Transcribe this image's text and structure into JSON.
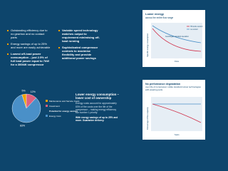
{
  "bullets_left": [
    "Outstanding efficiency due to no gearbox and no contact parts",
    "Energy savings of up to 25% and more are easily achievable",
    "Lowest off-load power consumption – just 2.5% of full load power equal to 7kW for a 300kW compressor"
  ],
  "bullets_right": [
    "Variable speed technology matches output to requirement minimising off-load running",
    "Sophisticated compressor controls to maximise flexibility and provide additional power savings"
  ],
  "cost_section": {
    "title": "Lower energy consumption – lower cost of ownership",
    "body": "Energy costs account for approximately 83% of the costs over the life of the compressor – making energy efficiency our number 1 priority.",
    "highlight": "With energy savings of up to 25% and more. Guarantee delivery."
  },
  "efficiency_chart": {
    "title": "Lower energy",
    "subtitle": "across the entire flow range",
    "y_label": "Specific energy consumption",
    "x_label": "Flow",
    "legend": [
      "HS turbo control",
      "no control"
    ],
    "curve_label": "Centrifugal, standard operation"
  },
  "degradation_chart": {
    "title": "No performance degradation",
    "subtitle": "over life of compressor unlike standard screw technologies with wearing parts",
    "y_label": "Percentage of flow capacity",
    "x_label": "Years"
  },
  "chart_data": {
    "type": "pie",
    "categories": [
      "Maintenance and Service Costs",
      "Investment",
      "Energy Cost"
    ],
    "values": [
      5,
      12,
      83
    ],
    "value_labels": [
      "5%",
      "12%",
      "83%"
    ],
    "colors": [
      "#f0a000",
      "#e0607e",
      "#4a90c8"
    ],
    "annotation": "Potential for energy savings"
  }
}
